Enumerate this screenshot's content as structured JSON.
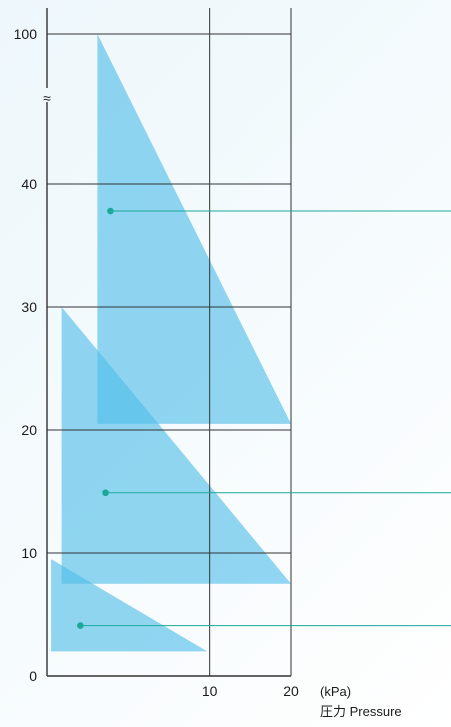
{
  "chart_data": {
    "type": "area",
    "x_unit": "(kPa)",
    "x_caption": "圧力  Pressure",
    "y_unit": "",
    "y_break_symbol": "≈",
    "x_ticks": [
      10,
      20
    ],
    "y_ticks": [
      0,
      10,
      20,
      30,
      40,
      100
    ],
    "y_axis_break": {
      "from": 40,
      "to": 100
    },
    "xlim": [
      -10,
      20
    ],
    "grid": true,
    "colors": {
      "region": "#4fbde9",
      "leader": "#1aa89c",
      "grid": "#333333"
    },
    "regions": [
      {
        "vertices": [
          [
            -3.8,
            100
          ],
          [
            -3.8,
            20.5
          ],
          [
            20,
            20.5
          ]
        ],
        "marker": [
          -2.2,
          37.8
        ]
      },
      {
        "vertices": [
          [
            -8.2,
            30
          ],
          [
            -8.2,
            7.5
          ],
          [
            20,
            7.5
          ]
        ],
        "marker": [
          -2.8,
          14.9
        ]
      },
      {
        "vertices": [
          [
            -9.5,
            9.5
          ],
          [
            -9.5,
            2
          ],
          [
            9.7,
            2
          ]
        ],
        "marker": [
          -5.9,
          4.1
        ]
      }
    ]
  }
}
